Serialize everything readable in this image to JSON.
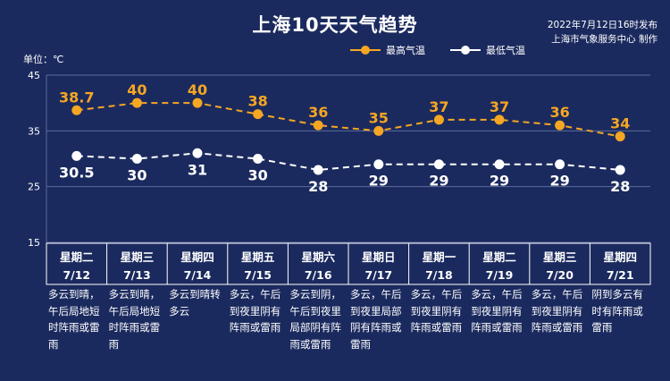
{
  "header": {
    "title": "上海10天天气趋势",
    "release_time": "2022年7月12日16时发布",
    "publisher": "上海市气象服务中心 制作"
  },
  "colors": {
    "background": "#1b2a5e",
    "high": "#f5a623",
    "low": "#ffffff",
    "grid": "#5a6a9a"
  },
  "chart_data": {
    "type": "line",
    "unit_label": "单位：℃",
    "ylim": [
      15,
      45
    ],
    "yticks": [
      15,
      25,
      35,
      45
    ],
    "legend_position": "top-center",
    "series": [
      {
        "name": "最高气温",
        "color": "#f5a623",
        "values": [
          38.7,
          40,
          40,
          38,
          36,
          35,
          37,
          37,
          36,
          34
        ],
        "labels": [
          "38.7",
          "40",
          "40",
          "38",
          "36",
          "35",
          "37",
          "37",
          "36",
          "34"
        ]
      },
      {
        "name": "最低气温",
        "color": "#ffffff",
        "values": [
          30.5,
          30,
          31,
          30,
          28,
          29,
          29,
          29,
          29,
          28
        ],
        "labels": [
          "30.5",
          "30",
          "31",
          "30",
          "28",
          "29",
          "29",
          "29",
          "29",
          "28"
        ]
      }
    ],
    "days": [
      {
        "weekday": "星期二",
        "date": "7/12",
        "desc": "多云到晴，午后局地短时阵雨或雷雨"
      },
      {
        "weekday": "星期三",
        "date": "7/13",
        "desc": "多云到晴，午后局地短时阵雨或雷雨"
      },
      {
        "weekday": "星期四",
        "date": "7/14",
        "desc": "多云到晴转多云"
      },
      {
        "weekday": "星期五",
        "date": "7/15",
        "desc": "多云，午后到夜里阴有阵雨或雷雨"
      },
      {
        "weekday": "星期六",
        "date": "7/16",
        "desc": "多云到阴，午后到夜里局部阴有阵雨或雷雨"
      },
      {
        "weekday": "星期日",
        "date": "7/17",
        "desc": "多云，午后到夜里局部阴有阵雨或雷雨"
      },
      {
        "weekday": "星期一",
        "date": "7/18",
        "desc": "多云，午后到夜里阴有阵雨或雷雨"
      },
      {
        "weekday": "星期二",
        "date": "7/19",
        "desc": "多云，午后到夜里阴有阵雨或雷雨"
      },
      {
        "weekday": "星期三",
        "date": "7/20",
        "desc": "多云，午后到夜里阴有阵雨或雷雨"
      },
      {
        "weekday": "星期四",
        "date": "7/21",
        "desc": "阴到多云有时有阵雨或雷雨"
      }
    ]
  }
}
